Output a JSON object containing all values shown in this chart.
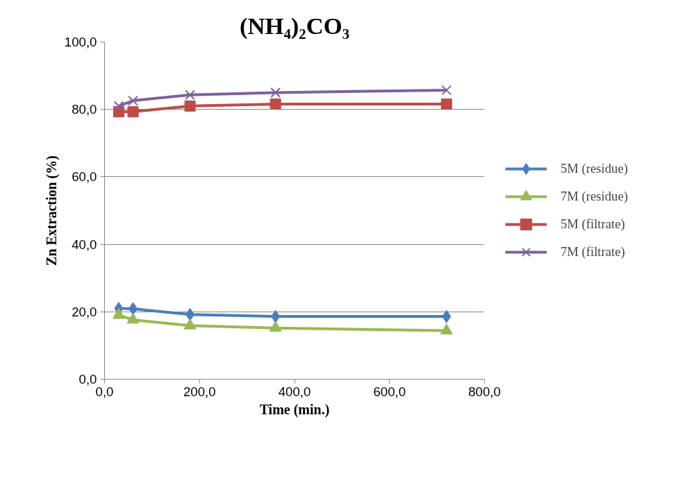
{
  "chart_data": {
    "type": "line",
    "title": "(NH₄)₂CO₃",
    "xlabel": "Time (min.)",
    "ylabel": "Zn Extraction (%)",
    "x": [
      30,
      60,
      180,
      360,
      720
    ],
    "series": [
      {
        "name": "5M (residue)",
        "color": "#4a7ebb",
        "marker": "diamond",
        "values": [
          21.0,
          20.9,
          19.2,
          18.6,
          18.6
        ]
      },
      {
        "name": "7M (residue)",
        "color": "#98b954",
        "marker": "triangle",
        "values": [
          19.0,
          17.6,
          15.9,
          15.2,
          14.4
        ]
      },
      {
        "name": "5M (filtrate)",
        "color": "#be4b48",
        "marker": "square",
        "values": [
          79.3,
          79.3,
          81.0,
          81.6,
          81.6
        ]
      },
      {
        "name": "7M (filtrate)",
        "color": "#7d60a0",
        "marker": "cross",
        "values": [
          81.0,
          82.6,
          84.3,
          85.0,
          85.7
        ]
      }
    ],
    "xlim": [
      0,
      800
    ],
    "ylim": [
      0,
      100
    ],
    "xticks": [
      {
        "value": 0,
        "label": "0,0"
      },
      {
        "value": 200,
        "label": "200,0"
      },
      {
        "value": 400,
        "label": "400,0"
      },
      {
        "value": 600,
        "label": "600,0"
      },
      {
        "value": 800,
        "label": "800,0"
      }
    ],
    "yticks": [
      {
        "value": 0,
        "label": "0,0"
      },
      {
        "value": 20,
        "label": "20,0"
      },
      {
        "value": 40,
        "label": "40,0"
      },
      {
        "value": 60,
        "label": "60,0"
      },
      {
        "value": 80,
        "label": "80,0"
      },
      {
        "value": 100,
        "label": "100,0"
      }
    ],
    "grid": "y",
    "legend": "right",
    "line_style": "solid"
  }
}
